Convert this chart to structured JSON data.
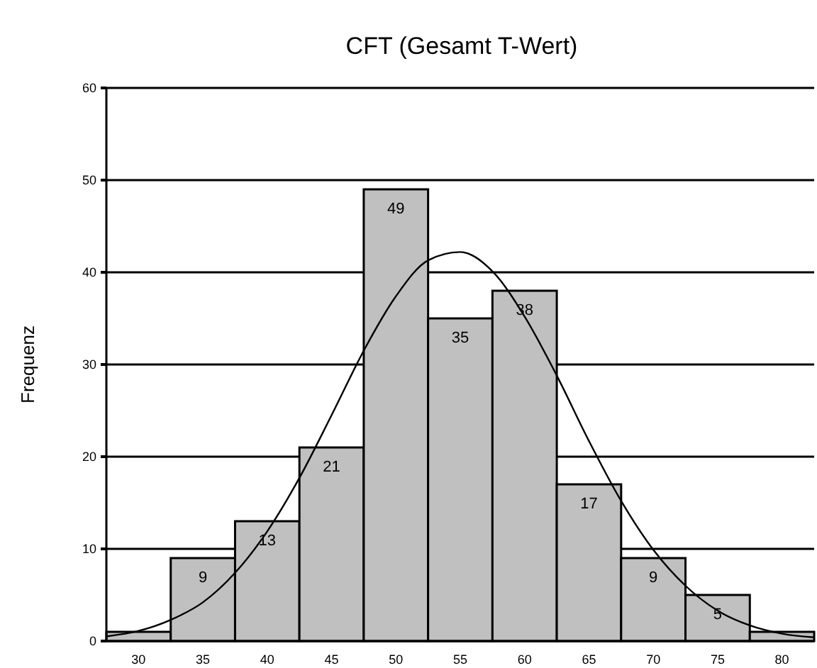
{
  "chart_data": {
    "type": "histogram",
    "title": "CFT (Gesamt T-Wert)",
    "ylabel": "Frequenz",
    "xlim": [
      27.5,
      82.5
    ],
    "xticks": [
      30,
      35,
      40,
      45,
      50,
      55,
      60,
      65,
      70,
      75,
      80
    ],
    "ylim": [
      0,
      60
    ],
    "yticks": [
      0,
      10,
      20,
      30,
      40,
      50,
      60
    ],
    "grid": "y",
    "series": [
      {
        "color": "#c0c0c0",
        "bins": [
          27.5,
          32.5,
          37.5,
          42.5,
          47.5,
          52.5,
          57.5,
          62.5,
          67.5,
          72.5,
          77.5,
          82.5
        ],
        "values": [
          1,
          9,
          13,
          21,
          49,
          35,
          38,
          17,
          9,
          5,
          1
        ],
        "value_labels": [
          null,
          "9",
          "13",
          "21",
          "49",
          "35",
          "38",
          "17",
          "9",
          "5",
          null
        ]
      },
      {
        "type": "line",
        "color": "#000000",
        "marker": "none",
        "line_style": "solid",
        "x": [
          27.5,
          30,
          32.5,
          35,
          37.5,
          40,
          42.5,
          45,
          47.5,
          50,
          52.5,
          55,
          57.5,
          60,
          62.5,
          65,
          67.5,
          70,
          72.5,
          75,
          77.5,
          80,
          82.5
        ],
        "values": [
          0.5,
          1.1,
          2.3,
          4.2,
          7.4,
          11.9,
          17.7,
          24.5,
          31.5,
          37.4,
          41.3,
          42.2,
          40.1,
          35.2,
          28.8,
          21.7,
          15.2,
          9.9,
          6.0,
          3.3,
          1.7,
          0.8,
          0.4
        ]
      }
    ]
  }
}
